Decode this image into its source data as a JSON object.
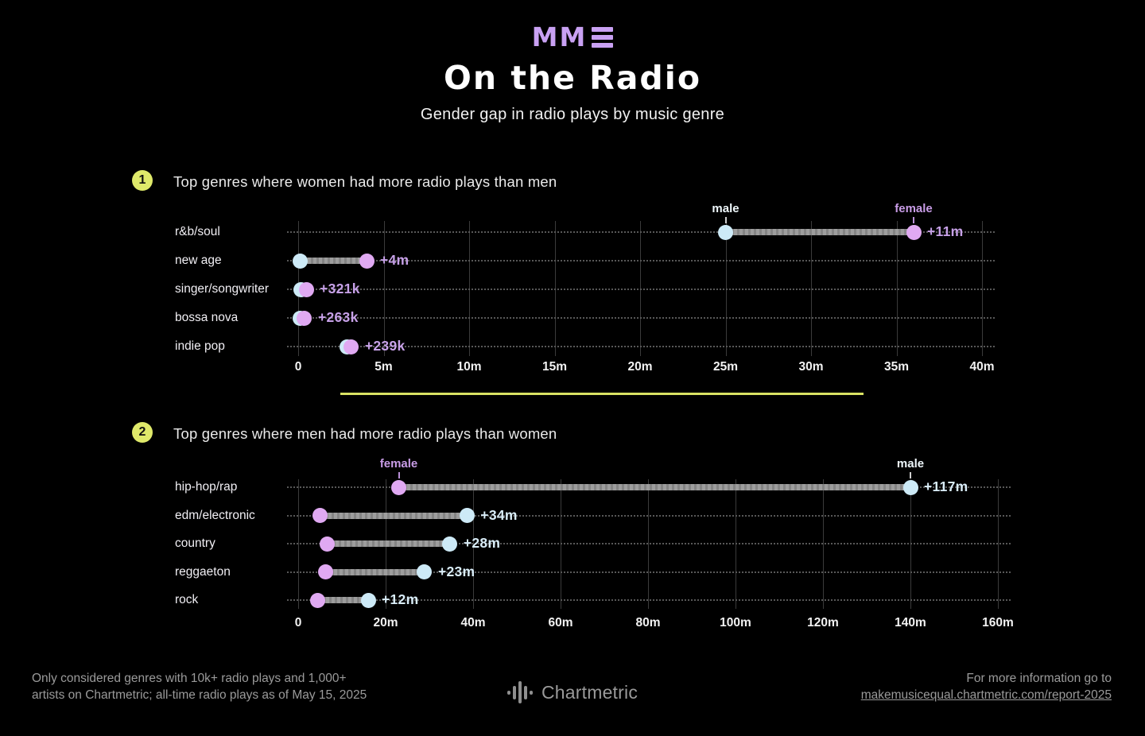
{
  "header": {
    "logo_text": "MM",
    "title": "On the Radio",
    "subtitle": "Gender gap in radio plays by music genre"
  },
  "sections": [
    {
      "number": "1",
      "title": "Top genres where women had more radio plays than men"
    },
    {
      "number": "2",
      "title": "Top genres where men had more radio plays than women"
    }
  ],
  "colors": {
    "background": "#000000",
    "logo_purple": "#c9a1f3",
    "female_dot": "#e0a9f2",
    "male_dot": "#cdeaf7",
    "female_label_text": "#c89ce6",
    "male_label_text": "#eef7fb",
    "female_tick": "#b98fd8",
    "male_tick": "#cfcfcf",
    "bar_gray": "#9d9d9d",
    "value_text_chart1": "#c7a1e8",
    "value_text_chart2": "#d9edf8",
    "badge_yellow": "#dfe96a",
    "divider_yellow": "#d9e263",
    "grid_gray": "#3b3b3b",
    "footer_gray": "#9a9a9a"
  },
  "chart_data": [
    {
      "type": "dumbbell",
      "title": "Top genres where women had more radio plays than men",
      "unit": "all-time radio plays, millions",
      "xlim": [
        0,
        40
      ],
      "tick_values": [
        0,
        5,
        10,
        15,
        20,
        25,
        30,
        35,
        40
      ],
      "tick_labels": [
        "0",
        "5m",
        "10m",
        "15m",
        "20m",
        "25m",
        "30m",
        "35m",
        "40m"
      ],
      "grid": true,
      "value_color_key": "value_text_chart1",
      "annotations": [
        {
          "label": "male",
          "gender": "male"
        },
        {
          "label": "female",
          "gender": "female"
        }
      ],
      "rows": [
        {
          "genre": "r&b/soul",
          "male": 25.0,
          "female": 36.0,
          "diff_label": "+11m"
        },
        {
          "genre": "new age",
          "male": 0.1,
          "female": 4.0,
          "diff_label": "+4m"
        },
        {
          "genre": "singer/songwriter",
          "male": 0.15,
          "female": 0.47,
          "diff_label": "+321k"
        },
        {
          "genre": "bossa nova",
          "male": 0.1,
          "female": 0.37,
          "diff_label": "+263k"
        },
        {
          "genre": "indie pop",
          "male": 2.87,
          "female": 3.11,
          "diff_label": "+239k"
        }
      ]
    },
    {
      "type": "dumbbell",
      "title": "Top genres where men had more radio plays than women",
      "unit": "all-time radio plays, millions",
      "xlim": [
        0,
        160
      ],
      "tick_values": [
        0,
        20,
        40,
        60,
        80,
        100,
        120,
        140,
        160
      ],
      "tick_labels": [
        "0",
        "20m",
        "40m",
        "60m",
        "80m",
        "100m",
        "120m",
        "140m",
        "160m"
      ],
      "grid": true,
      "value_color_key": "value_text_chart2",
      "annotations": [
        {
          "label": "female",
          "gender": "female"
        },
        {
          "label": "male",
          "gender": "male"
        }
      ],
      "rows": [
        {
          "genre": "hip-hop/rap",
          "male": 140.0,
          "female": 23.0,
          "diff_label": "+117m"
        },
        {
          "genre": "edm/electronic",
          "male": 38.6,
          "female": 5.0,
          "diff_label": "+34m"
        },
        {
          "genre": "country",
          "male": 34.7,
          "female": 6.7,
          "diff_label": "+28m"
        },
        {
          "genre": "reggaeton",
          "male": 28.9,
          "female": 6.3,
          "diff_label": "+23m"
        },
        {
          "genre": "rock",
          "male": 16.0,
          "female": 4.5,
          "diff_label": "+12m"
        }
      ]
    }
  ],
  "footer": {
    "note_line1": "Only considered genres with 10k+ radio plays and 1,000+",
    "note_line2": "artists on Chartmetric; all-time radio plays as of May 15, 2025",
    "brand": "Chartmetric",
    "info_line1": "For more information go to",
    "info_link": "makemusicequal.chartmetric.com/report-2025"
  }
}
